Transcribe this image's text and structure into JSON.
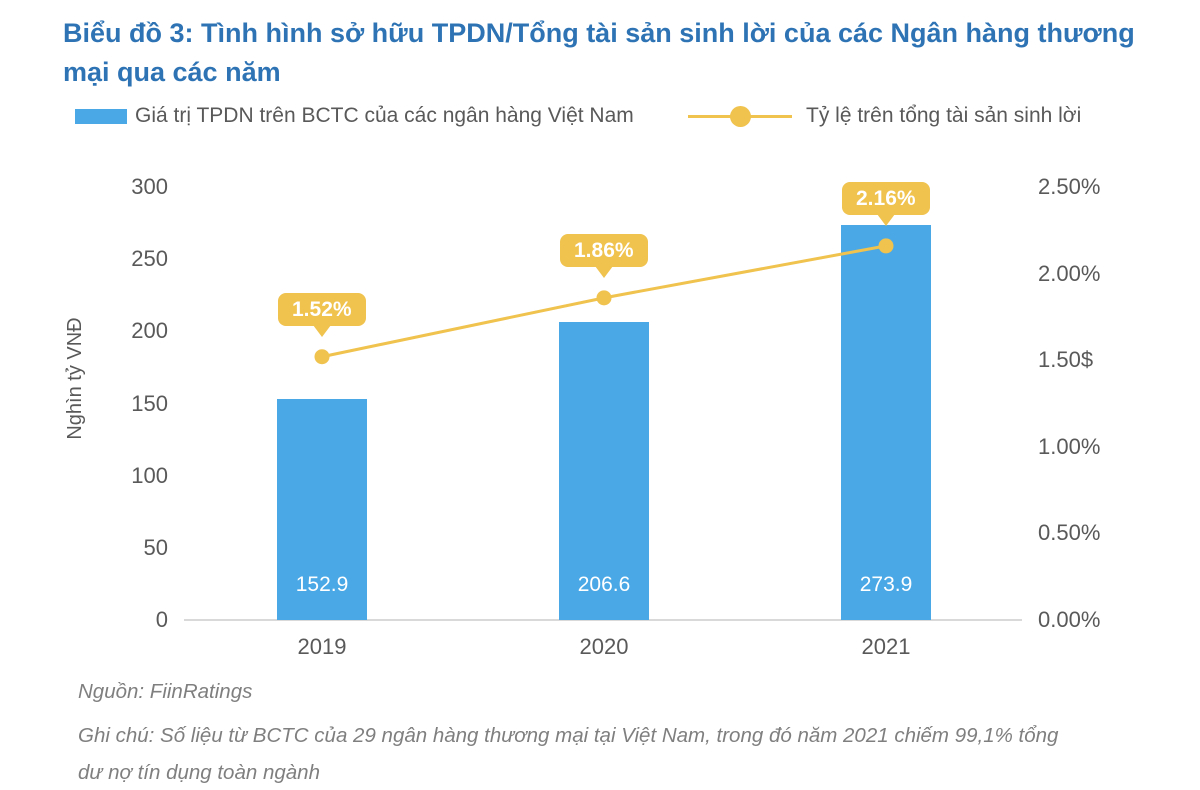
{
  "title": "Biểu đồ 3: Tình hình sở hữu TPDN/Tổng tài sản sinh lời của các Ngân hàng thương mại qua các năm",
  "legend": {
    "bar_label": "Giá trị TPDN trên BCTC của các ngân hàng Việt Nam",
    "line_label": "Tỷ lệ trên tổng tài sản sinh lời"
  },
  "colors": {
    "bar": "#4AA8E6",
    "line": "#F0C24E",
    "title": "#2E74B5",
    "axis_text": "#595959",
    "bar_value_text": "#FFFFFF",
    "callout_text": "#FFFFFF",
    "footer_text": "#7F7F7F",
    "axis_line": "#D9D9D9"
  },
  "chart_data": {
    "type": "bar+line combo",
    "categories": [
      "2019",
      "2020",
      "2021"
    ],
    "series": [
      {
        "name": "Giá trị TPDN trên BCTC của các ngân hàng Việt Nam",
        "type": "bar",
        "axis": "left",
        "values": [
          152.9,
          206.6,
          273.9
        ],
        "value_labels": [
          "152.9",
          "206.6",
          "273.9"
        ]
      },
      {
        "name": "Tỷ lệ trên tổng tài sản sinh lời",
        "type": "line",
        "axis": "right",
        "values": [
          1.52,
          1.86,
          2.16
        ],
        "value_labels": [
          "1.52%",
          "1.86%",
          "2.16%"
        ]
      }
    ],
    "left_axis": {
      "title": "Nghìn tỷ VNĐ",
      "ticks": [
        "300",
        "250",
        "200",
        "150",
        "100",
        "50",
        "0"
      ],
      "ylim": [
        0,
        300
      ]
    },
    "right_axis": {
      "ticks": [
        "2.50%",
        "2.00%",
        "1.50$",
        "1.00%",
        "0.50%",
        "0.00%"
      ],
      "ylim": [
        0,
        2.5
      ]
    },
    "grid": false,
    "legend_position": "top"
  },
  "footer": {
    "source": "Nguồn: FiinRatings",
    "note": "Ghi chú: Số liệu từ BCTC của 29 ngân hàng thương mại tại Việt Nam, trong đó năm 2021 chiếm 99,1% tổng dư nợ tín dụng toàn ngành"
  }
}
